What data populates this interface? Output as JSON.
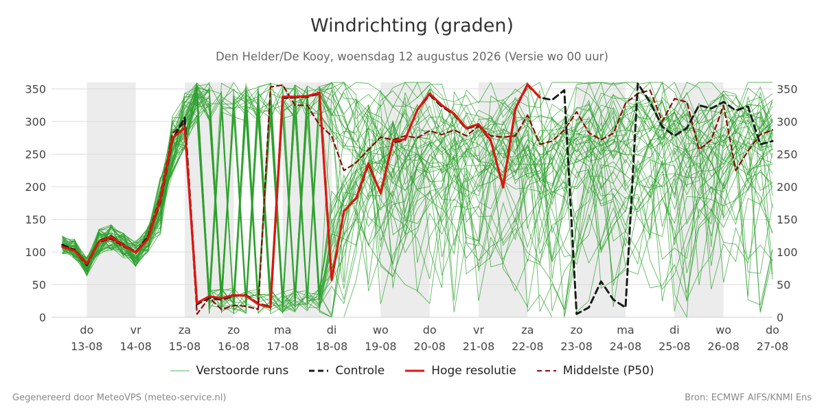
{
  "title": "Windrichting (graden)",
  "subtitle": "Den Helder/De Kooy, woensdag 12 augustus 2026 (Versie wo 00 uur)",
  "footer_left": "Gegenereerd door MeteoVPS (meteo-service.nl)",
  "footer_right": "Bron: ECMWF AIFS/KNMI Ens",
  "colors": {
    "ensemble": "#2ca02c",
    "control": "#1a1a1a",
    "high_res": "#e0150f",
    "median": "#8b0a0a",
    "weekend_band": "#ececec",
    "grid": "#dddddd"
  },
  "legend": [
    {
      "key": "ensemble",
      "label": "Verstoorde runs"
    },
    {
      "key": "control",
      "label": "Controle"
    },
    {
      "key": "high_res",
      "label": "Hoge resolutie"
    },
    {
      "key": "median",
      "label": "Middelste (P50)"
    }
  ],
  "chart_data": {
    "type": "line",
    "title": "Windrichting (graden)",
    "subtitle": "Den Helder/De Kooy, woensdag 12 augustus 2026 (Versie wo 00 uur)",
    "xlabel": "",
    "ylabel": "",
    "x_unit": "days since 2026-08-12 00:00",
    "xlim": [
      0.45,
      15.1
    ],
    "ylim": [
      0,
      360
    ],
    "y_ticks": [
      0,
      50,
      100,
      150,
      200,
      250,
      300,
      350
    ],
    "y_axis_both_sides": true,
    "grid": "horizontal",
    "legend_position": "bottom",
    "x_ticks": [
      {
        "x": 1,
        "day": "do",
        "date": "13-08"
      },
      {
        "x": 2,
        "day": "vr",
        "date": "14-08"
      },
      {
        "x": 3,
        "day": "za",
        "date": "15-08"
      },
      {
        "x": 4,
        "day": "zo",
        "date": "16-08"
      },
      {
        "x": 5,
        "day": "ma",
        "date": "17-08"
      },
      {
        "x": 6,
        "day": "di",
        "date": "18-08"
      },
      {
        "x": 7,
        "day": "wo",
        "date": "19-08"
      },
      {
        "x": 8,
        "day": "do",
        "date": "20-08"
      },
      {
        "x": 9,
        "day": "vr",
        "date": "21-08"
      },
      {
        "x": 10,
        "day": "za",
        "date": "22-08"
      },
      {
        "x": 11,
        "day": "zo",
        "date": "23-08"
      },
      {
        "x": 12,
        "day": "ma",
        "date": "24-08"
      },
      {
        "x": 13,
        "day": "di",
        "date": "25-08"
      },
      {
        "x": 14,
        "day": "wo",
        "date": "26-08"
      },
      {
        "x": 15,
        "day": "do",
        "date": "27-08"
      }
    ],
    "shaded_periods": [
      [
        1,
        2
      ],
      [
        3,
        4
      ],
      [
        5,
        6
      ],
      [
        7,
        8
      ],
      [
        9,
        10
      ],
      [
        11,
        12
      ],
      [
        13,
        14
      ]
    ],
    "ensemble": {
      "name": "Verstoorde runs",
      "members": 50,
      "step_days": 0.25,
      "early_path": [
        [
          0.5,
          110
        ],
        [
          0.75,
          105
        ],
        [
          1.0,
          78
        ],
        [
          1.25,
          115
        ],
        [
          1.5,
          122
        ],
        [
          1.75,
          110
        ],
        [
          2.0,
          98
        ],
        [
          2.25,
          120
        ],
        [
          2.5,
          170
        ],
        [
          2.75,
          265
        ],
        [
          3.0,
          300
        ],
        [
          3.25,
          355
        ]
      ],
      "note": "individual members scatter widely between 0 and 360 after day 3"
    },
    "series": [
      {
        "name": "Hoge resolutie",
        "style": "solid",
        "points": [
          [
            0.5,
            108
          ],
          [
            0.75,
            102
          ],
          [
            1.0,
            82
          ],
          [
            1.25,
            116
          ],
          [
            1.5,
            123
          ],
          [
            1.75,
            110
          ],
          [
            2.0,
            99
          ],
          [
            2.25,
            120
          ],
          [
            2.5,
            180
          ],
          [
            2.75,
            275
          ],
          [
            3.0,
            290
          ],
          [
            3.25,
            22
          ],
          [
            3.5,
            32
          ],
          [
            3.75,
            29
          ],
          [
            4.0,
            34
          ],
          [
            4.25,
            33
          ],
          [
            4.5,
            20
          ],
          [
            4.75,
            15
          ],
          [
            5.0,
            338
          ],
          [
            5.25,
            338
          ],
          [
            5.5,
            339
          ],
          [
            5.75,
            344
          ],
          [
            6.0,
            57
          ],
          [
            6.25,
            162
          ],
          [
            6.5,
            183
          ],
          [
            6.75,
            236
          ],
          [
            7.0,
            190
          ],
          [
            7.25,
            270
          ],
          [
            7.5,
            273
          ],
          [
            7.75,
            318
          ],
          [
            8.0,
            343
          ],
          [
            8.25,
            325
          ],
          [
            8.5,
            312
          ],
          [
            8.75,
            290
          ],
          [
            9.0,
            296
          ],
          [
            9.25,
            271
          ],
          [
            9.5,
            199
          ],
          [
            9.75,
            320
          ],
          [
            10.0,
            357
          ],
          [
            10.25,
            337
          ]
        ]
      },
      {
        "name": "Controle",
        "style": "dashed",
        "points": [
          [
            0.5,
            111
          ],
          [
            0.75,
            103
          ],
          [
            1.0,
            80
          ],
          [
            1.25,
            117
          ],
          [
            1.5,
            124
          ],
          [
            1.75,
            111
          ],
          [
            2.0,
            100
          ],
          [
            2.25,
            122
          ],
          [
            2.5,
            177
          ],
          [
            2.75,
            272
          ],
          [
            3.0,
            306
          ],
          [
            3.25,
            20
          ],
          [
            3.5,
            30
          ],
          [
            3.75,
            27
          ],
          [
            4.0,
            33
          ],
          [
            4.25,
            34
          ],
          [
            4.5,
            21
          ],
          [
            4.75,
            16
          ],
          [
            5.0,
            336
          ],
          [
            5.25,
            337
          ],
          [
            5.5,
            338
          ],
          [
            5.75,
            343
          ],
          [
            6.0,
            58
          ],
          [
            6.25,
            163
          ],
          [
            6.5,
            182
          ],
          [
            6.75,
            234
          ],
          [
            7.0,
            191
          ],
          [
            7.25,
            268
          ],
          [
            7.5,
            272
          ],
          [
            7.75,
            318
          ],
          [
            8.0,
            341
          ],
          [
            8.25,
            323
          ],
          [
            8.5,
            311
          ],
          [
            8.75,
            289
          ],
          [
            9.0,
            295
          ],
          [
            9.25,
            270
          ],
          [
            9.5,
            200
          ],
          [
            9.75,
            319
          ],
          [
            10.0,
            356
          ],
          [
            10.25,
            337
          ],
          [
            10.5,
            333
          ],
          [
            10.75,
            348
          ],
          [
            11.0,
            5
          ],
          [
            11.25,
            15
          ],
          [
            11.5,
            55
          ],
          [
            11.75,
            27
          ],
          [
            12.0,
            15
          ],
          [
            12.25,
            358
          ],
          [
            12.5,
            330
          ],
          [
            12.75,
            292
          ],
          [
            13.0,
            278
          ],
          [
            13.25,
            290
          ],
          [
            13.5,
            325
          ],
          [
            13.75,
            320
          ],
          [
            14.0,
            330
          ],
          [
            14.25,
            317
          ],
          [
            14.5,
            323
          ],
          [
            14.75,
            265
          ],
          [
            15.0,
            270
          ],
          [
            15.25,
            195
          ]
        ]
      },
      {
        "name": "Middelste (P50)",
        "style": "dashed",
        "points": [
          [
            0.5,
            108
          ],
          [
            0.75,
            104
          ],
          [
            1.0,
            83
          ],
          [
            1.25,
            115
          ],
          [
            1.5,
            120
          ],
          [
            1.75,
            108
          ],
          [
            2.0,
            100
          ],
          [
            2.25,
            125
          ],
          [
            2.5,
            185
          ],
          [
            2.75,
            282
          ],
          [
            3.0,
            298
          ],
          [
            3.25,
            5
          ],
          [
            3.5,
            30
          ],
          [
            3.75,
            12
          ],
          [
            4.0,
            18
          ],
          [
            4.25,
            17
          ],
          [
            4.5,
            12
          ],
          [
            4.75,
            353
          ],
          [
            5.0,
            356
          ],
          [
            5.25,
            325
          ],
          [
            5.5,
            325
          ],
          [
            5.75,
            295
          ],
          [
            6.0,
            278
          ],
          [
            6.25,
            225
          ],
          [
            6.5,
            237
          ],
          [
            6.75,
            257
          ],
          [
            7.0,
            276
          ],
          [
            7.25,
            272
          ],
          [
            7.5,
            278
          ],
          [
            7.75,
            275
          ],
          [
            8.0,
            286
          ],
          [
            8.25,
            280
          ],
          [
            8.5,
            287
          ],
          [
            8.75,
            278
          ],
          [
            9.0,
            293
          ],
          [
            9.25,
            278
          ],
          [
            9.5,
            276
          ],
          [
            9.75,
            278
          ],
          [
            10.0,
            310
          ],
          [
            10.25,
            265
          ],
          [
            10.5,
            270
          ],
          [
            10.75,
            287
          ],
          [
            11.0,
            315
          ],
          [
            11.25,
            283
          ],
          [
            11.5,
            272
          ],
          [
            11.75,
            282
          ],
          [
            12.0,
            328
          ],
          [
            12.25,
            343
          ],
          [
            12.5,
            348
          ],
          [
            12.75,
            300
          ],
          [
            13.0,
            335
          ],
          [
            13.25,
            330
          ],
          [
            13.5,
            257
          ],
          [
            13.75,
            272
          ],
          [
            14.0,
            325
          ],
          [
            14.25,
            225
          ],
          [
            14.5,
            255
          ],
          [
            14.75,
            280
          ],
          [
            15.0,
            287
          ],
          [
            15.25,
            255
          ]
        ]
      }
    ]
  }
}
